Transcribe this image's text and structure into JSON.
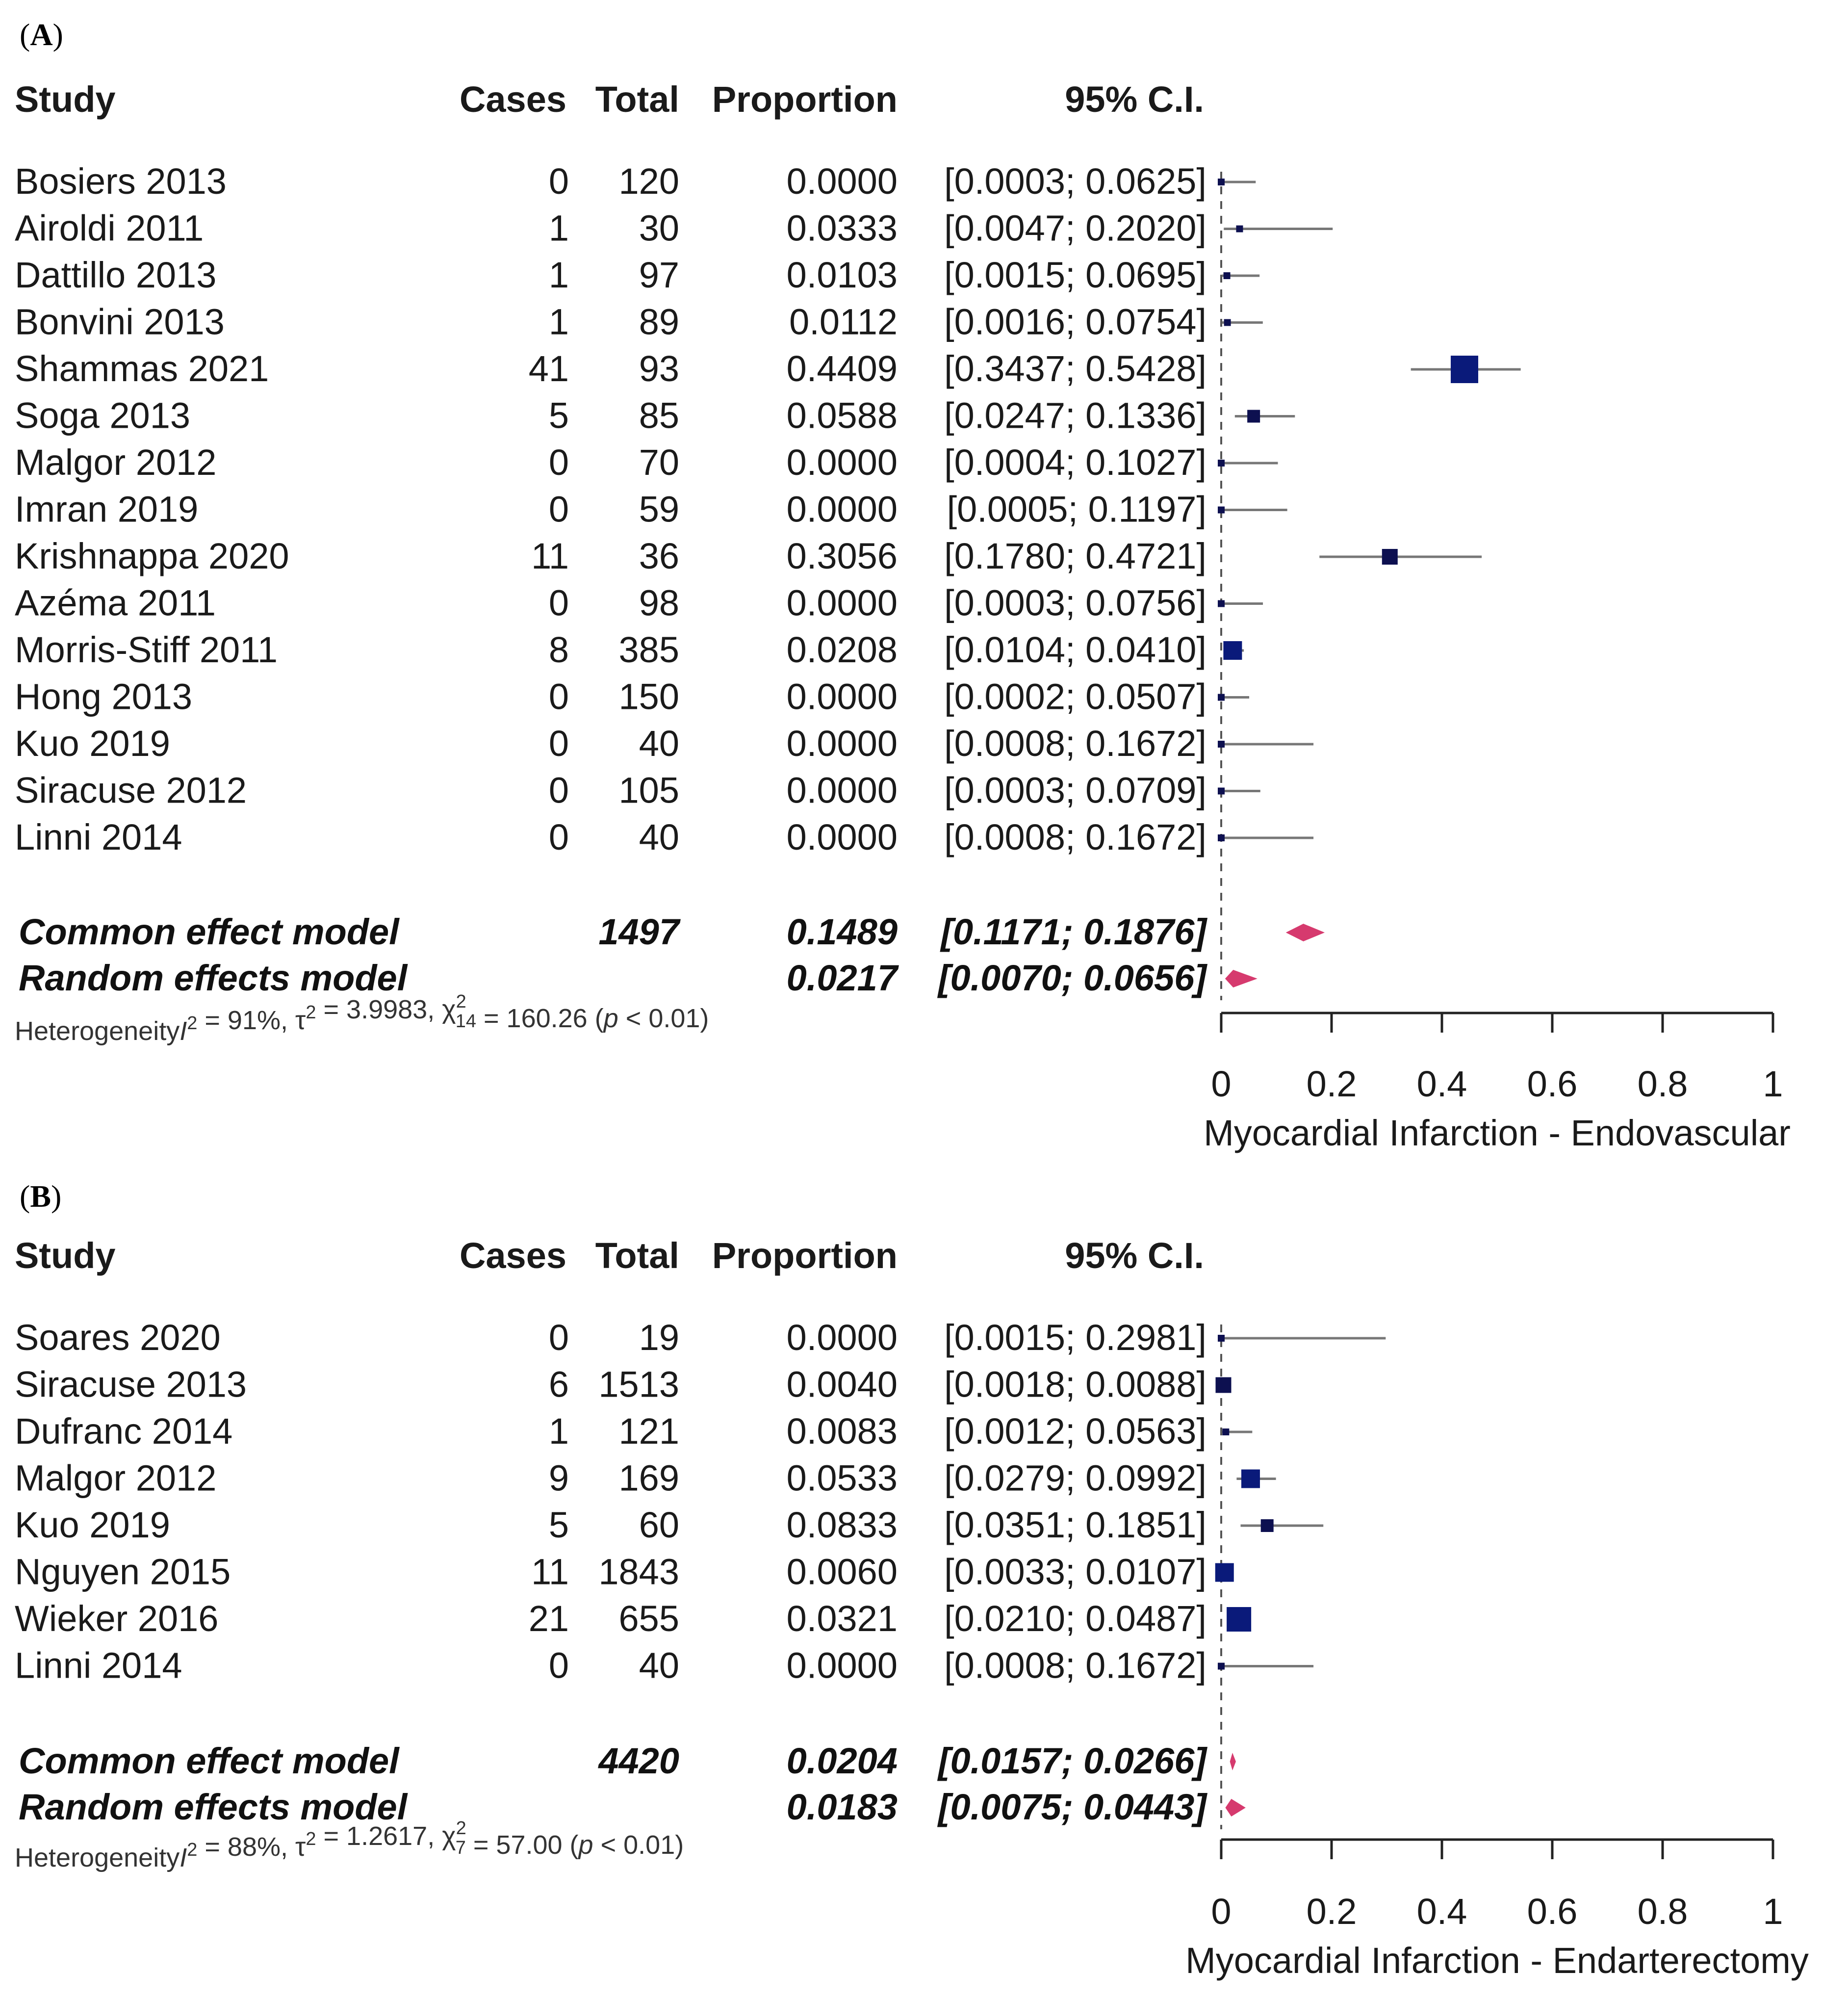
{
  "colors": {
    "box": "#0a1a7a",
    "box_dark": "#0d1050",
    "diamond": "#d63a6e",
    "ci": "#777777",
    "text": "#1a1a1a"
  },
  "chart_data": [
    {
      "type": "forest",
      "panel_label": "A",
      "columns": {
        "study": "Study",
        "cases": "Cases",
        "total": "Total",
        "proportion": "Proportion",
        "ci": "95% C.I."
      },
      "studies": [
        {
          "study": "Bosiers 2013",
          "cases": "0",
          "total": "120",
          "proportion": "0.0000",
          "ci": "[0.0003; 0.0625]",
          "p": 0.0,
          "lo": 0.0003,
          "hi": 0.0625,
          "weight": 1
        },
        {
          "study": "Airoldi 2011",
          "cases": "1",
          "total": "30",
          "proportion": "0.0333",
          "ci": "[0.0047; 0.2020]",
          "p": 0.0333,
          "lo": 0.0047,
          "hi": 0.202,
          "weight": 1
        },
        {
          "study": "Dattillo 2013",
          "cases": "1",
          "total": "97",
          "proportion": "0.0103",
          "ci": "[0.0015; 0.0695]",
          "p": 0.0103,
          "lo": 0.0015,
          "hi": 0.0695,
          "weight": 1
        },
        {
          "study": "Bonvini 2013",
          "cases": "1",
          "total": "89",
          "proportion": "0.0112",
          "ci": "[0.0016; 0.0754]",
          "p": 0.0112,
          "lo": 0.0016,
          "hi": 0.0754,
          "weight": 1
        },
        {
          "study": "Shammas 2021",
          "cases": "41",
          "total": "93",
          "proportion": "0.4409",
          "ci": "[0.3437; 0.5428]",
          "p": 0.4409,
          "lo": 0.3437,
          "hi": 0.5428,
          "weight": 8
        },
        {
          "study": "Soga 2013",
          "cases": "5",
          "total": "85",
          "proportion": "0.0588",
          "ci": "[0.0247; 0.1336]",
          "p": 0.0588,
          "lo": 0.0247,
          "hi": 0.1336,
          "weight": 3
        },
        {
          "study": "Malgor 2012",
          "cases": "0",
          "total": "70",
          "proportion": "0.0000",
          "ci": "[0.0004; 0.1027]",
          "p": 0.0,
          "lo": 0.0004,
          "hi": 0.1027,
          "weight": 1
        },
        {
          "study": "Imran 2019",
          "cases": "0",
          "total": "59",
          "proportion": "0.0000",
          "ci": "[0.0005; 0.1197]",
          "p": 0.0,
          "lo": 0.0005,
          "hi": 0.1197,
          "weight": 1
        },
        {
          "study": "Krishnappa 2020",
          "cases": "11",
          "total": "36",
          "proportion": "0.3056",
          "ci": "[0.1780; 0.4721]",
          "p": 0.3056,
          "lo": 0.178,
          "hi": 0.4721,
          "weight": 4
        },
        {
          "study": "Azéma 2011",
          "cases": "0",
          "total": "98",
          "proportion": "0.0000",
          "ci": "[0.0003; 0.0756]",
          "p": 0.0,
          "lo": 0.0003,
          "hi": 0.0756,
          "weight": 1
        },
        {
          "study": "Morris-Stiff 2011",
          "cases": "8",
          "total": "385",
          "proportion": "0.0208",
          "ci": "[0.0104; 0.0410]",
          "p": 0.0208,
          "lo": 0.0104,
          "hi": 0.041,
          "weight": 5
        },
        {
          "study": "Hong 2013",
          "cases": "0",
          "total": "150",
          "proportion": "0.0000",
          "ci": "[0.0002; 0.0507]",
          "p": 0.0,
          "lo": 0.0002,
          "hi": 0.0507,
          "weight": 1
        },
        {
          "study": "Kuo 2019",
          "cases": "0",
          "total": "40",
          "proportion": "0.0000",
          "ci": "[0.0008; 0.1672]",
          "p": 0.0,
          "lo": 0.0008,
          "hi": 0.1672,
          "weight": 1
        },
        {
          "study": "Siracuse 2012",
          "cases": "0",
          "total": "105",
          "proportion": "0.0000",
          "ci": "[0.0003; 0.0709]",
          "p": 0.0,
          "lo": 0.0003,
          "hi": 0.0709,
          "weight": 1
        },
        {
          "study": "Linni 2014",
          "cases": "0",
          "total": "40",
          "proportion": "0.0000",
          "ci": "[0.0008; 0.1672]",
          "p": 0.0,
          "lo": 0.0008,
          "hi": 0.1672,
          "weight": 1
        }
      ],
      "models": [
        {
          "label": "Common effect model",
          "total": "1497",
          "proportion": "0.1489",
          "ci": "[0.1171; 0.1876]",
          "p": 0.1489,
          "lo": 0.1171,
          "hi": 0.1876
        },
        {
          "label": "Random effects model",
          "total": "",
          "proportion": "0.0217",
          "ci": "[0.0070; 0.0656]",
          "p": 0.0217,
          "lo": 0.007,
          "hi": 0.0656
        }
      ],
      "heterogeneity": {
        "prefix": "Heterogeneity",
        "i2": "91%",
        "tau2": "3.9983",
        "chi_df": "14",
        "chi": "160.26",
        "p": "0.01"
      },
      "xaxis": {
        "range": [
          0,
          1
        ],
        "ticks": [
          "0",
          "0.2",
          "0.4",
          "0.6",
          "0.8",
          "1"
        ],
        "label": "Myocardial Infarction - Endovascular"
      },
      "reference_line": 0.0
    },
    {
      "type": "forest",
      "panel_label": "B",
      "columns": {
        "study": "Study",
        "cases": "Cases",
        "total": "Total",
        "proportion": "Proportion",
        "ci": "95% C.I."
      },
      "studies": [
        {
          "study": "Soares 2020",
          "cases": "0",
          "total": "19",
          "proportion": "0.0000",
          "ci": "[0.0015; 0.2981]",
          "p": 0.0,
          "lo": 0.0015,
          "hi": 0.2981,
          "weight": 1
        },
        {
          "study": "Siracuse 2013",
          "cases": "6",
          "total": "1513",
          "proportion": "0.0040",
          "ci": "[0.0018; 0.0088]",
          "p": 0.004,
          "lo": 0.0018,
          "hi": 0.0088,
          "weight": 4
        },
        {
          "study": "Dufranc 2014",
          "cases": "1",
          "total": "121",
          "proportion": "0.0083",
          "ci": "[0.0012; 0.0563]",
          "p": 0.0083,
          "lo": 0.0012,
          "hi": 0.0563,
          "weight": 1
        },
        {
          "study": "Malgor 2012",
          "cases": "9",
          "total": "169",
          "proportion": "0.0533",
          "ci": "[0.0279; 0.0992]",
          "p": 0.0533,
          "lo": 0.0279,
          "hi": 0.0992,
          "weight": 5
        },
        {
          "study": "Kuo 2019",
          "cases": "5",
          "total": "60",
          "proportion": "0.0833",
          "ci": "[0.0351; 0.1851]",
          "p": 0.0833,
          "lo": 0.0351,
          "hi": 0.1851,
          "weight": 3
        },
        {
          "study": "Nguyen 2015",
          "cases": "11",
          "total": "1843",
          "proportion": "0.0060",
          "ci": "[0.0033; 0.0107]",
          "p": 0.006,
          "lo": 0.0033,
          "hi": 0.0107,
          "weight": 5
        },
        {
          "study": "Wieker 2016",
          "cases": "21",
          "total": "655",
          "proportion": "0.0321",
          "ci": "[0.0210; 0.0487]",
          "p": 0.0321,
          "lo": 0.021,
          "hi": 0.0487,
          "weight": 7
        },
        {
          "study": "Linni 2014",
          "cases": "0",
          "total": "40",
          "proportion": "0.0000",
          "ci": "[0.0008; 0.1672]",
          "p": 0.0,
          "lo": 0.0008,
          "hi": 0.1672,
          "weight": 1
        }
      ],
      "models": [
        {
          "label": "Common effect model",
          "total": "4420",
          "proportion": "0.0204",
          "ci": "[0.0157; 0.0266]",
          "p": 0.0204,
          "lo": 0.0157,
          "hi": 0.0266
        },
        {
          "label": "Random effects model",
          "total": "",
          "proportion": "0.0183",
          "ci": "[0.0075; 0.0443]",
          "p": 0.0183,
          "lo": 0.0075,
          "hi": 0.0443
        }
      ],
      "heterogeneity": {
        "prefix": "Heterogeneity",
        "i2": "88%",
        "tau2": "1.2617",
        "chi_df": "7",
        "chi": "57.00",
        "p": "0.01"
      },
      "xaxis": {
        "range": [
          0,
          1
        ],
        "ticks": [
          "0",
          "0.2",
          "0.4",
          "0.6",
          "0.8",
          "1"
        ],
        "label": "Myocardial Infarction - Endarterectomy"
      },
      "reference_line": 0.0
    }
  ]
}
